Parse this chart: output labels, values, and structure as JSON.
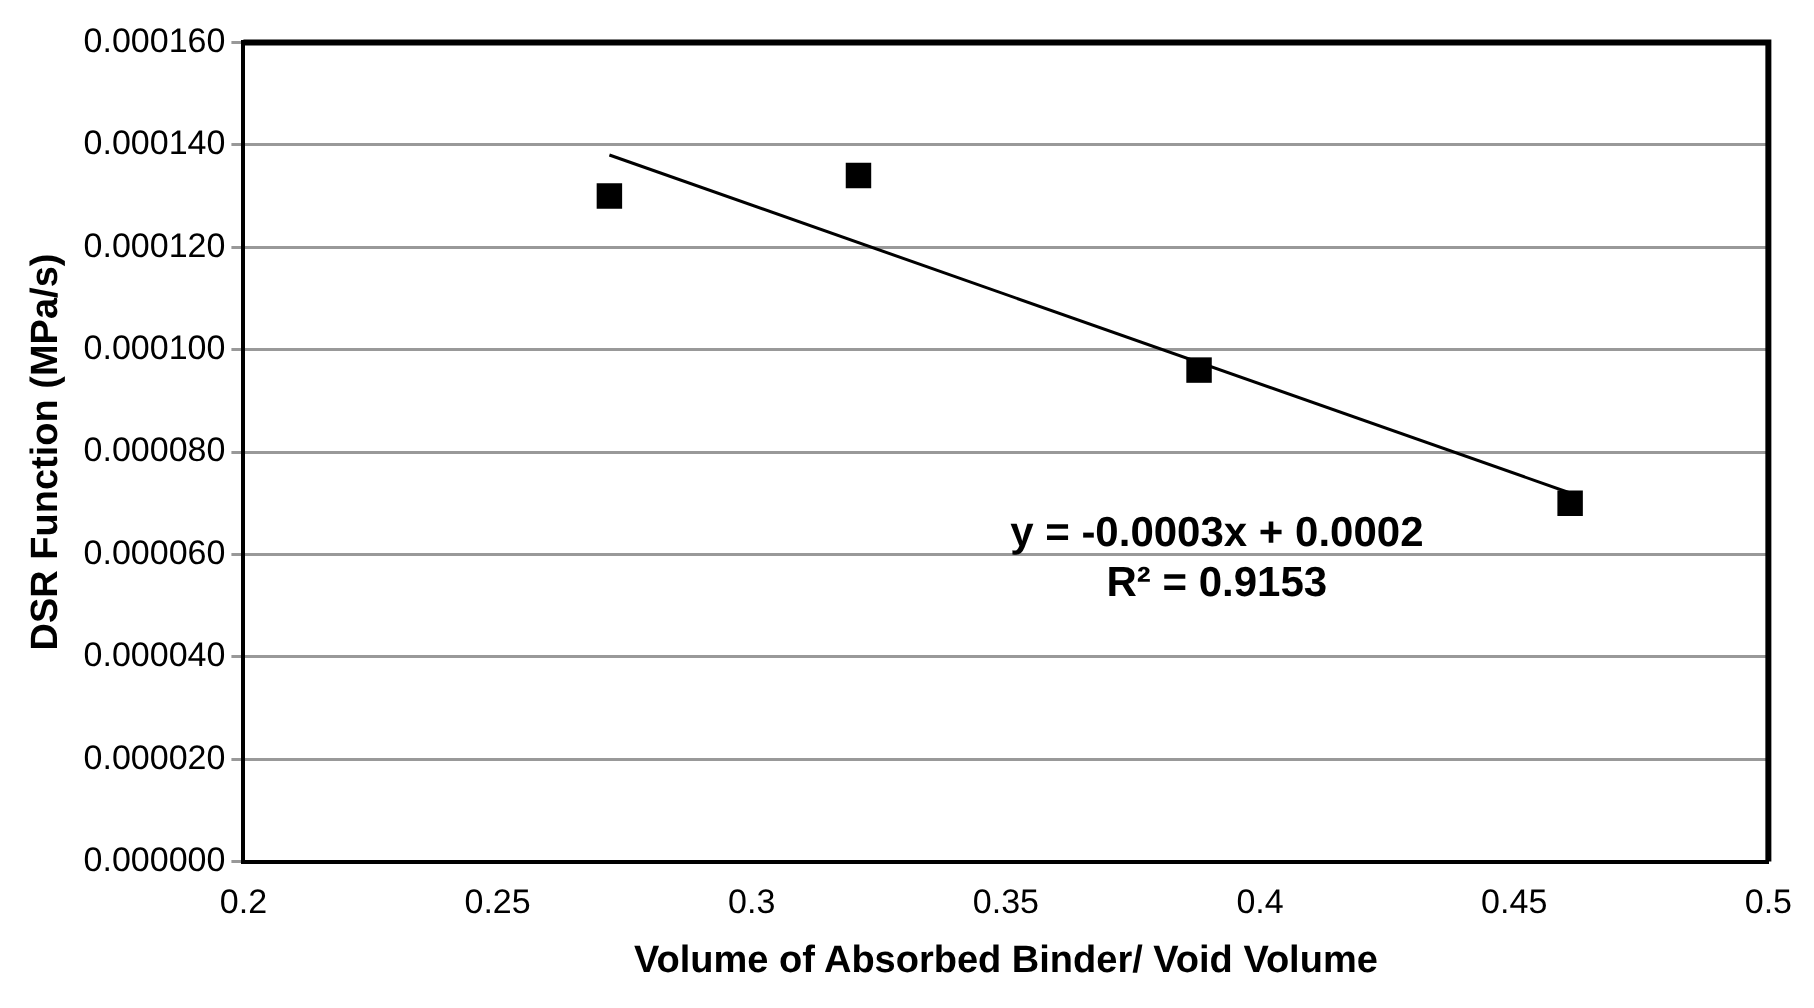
{
  "chart_data": {
    "type": "scatter",
    "xlabel": "Volume of Absorbed Binder/ Void Volume",
    "ylabel": "DSR Function (MPa/s)",
    "x": [
      0.272,
      0.321,
      0.388,
      0.461
    ],
    "series": [
      {
        "color": "#000000",
        "values": [
          0.00013,
          0.000134,
          9.6e-05,
          7e-05
        ],
        "marker": "square"
      },
      {
        "type": "line",
        "color": "#000000",
        "x": [
          0.272,
          0.461
        ],
        "values": [
          0.000138,
          7.2e-05
        ],
        "marker": "none",
        "line_style": "solid"
      }
    ],
    "xlim": [
      0.2,
      0.5
    ],
    "xticks": [
      0.2,
      0.25,
      0.3,
      0.35,
      0.4,
      0.45,
      0.5
    ],
    "ylim": [
      0,
      0.00016
    ],
    "yticks": [
      {
        "value": 0,
        "label": "0.000000"
      },
      {
        "value": 2e-05,
        "label": "0.000020"
      },
      {
        "value": 4e-05,
        "label": "0.000040"
      },
      {
        "value": 6e-05,
        "label": "0.000060"
      },
      {
        "value": 8e-05,
        "label": "0.000080"
      },
      {
        "value": 0.0001,
        "label": "0.000100"
      },
      {
        "value": 0.00012,
        "label": "0.000120"
      },
      {
        "value": 0.00014,
        "label": "0.000140"
      },
      {
        "value": 0.00016,
        "label": "0.000160"
      }
    ],
    "grid": "y",
    "legend": false,
    "annotations": [
      "y = -0.0003x + 0.0002",
      "R² = 0.9153"
    ]
  }
}
